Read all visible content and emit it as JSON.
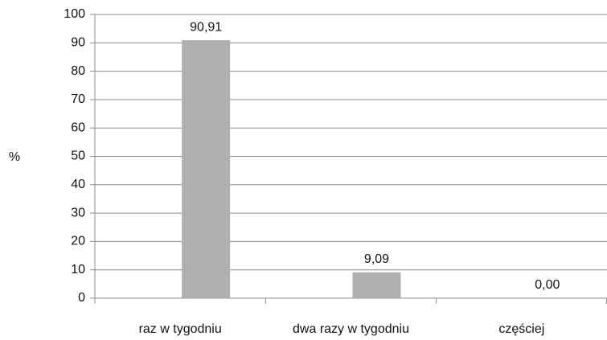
{
  "chart_data": {
    "type": "bar",
    "y_label": "%",
    "categories": [
      "raz w tygodniu",
      "dwa razy w tygodniu",
      "częściej"
    ],
    "values": [
      90.91,
      9.09,
      0
    ],
    "value_labels": [
      "90,91",
      "9,09",
      "0,00"
    ],
    "color": "#b0b0b0",
    "ylim": [
      0,
      100
    ],
    "yticks": [
      0,
      10,
      20,
      30,
      40,
      50,
      60,
      70,
      80,
      90,
      100
    ],
    "grid": true
  }
}
